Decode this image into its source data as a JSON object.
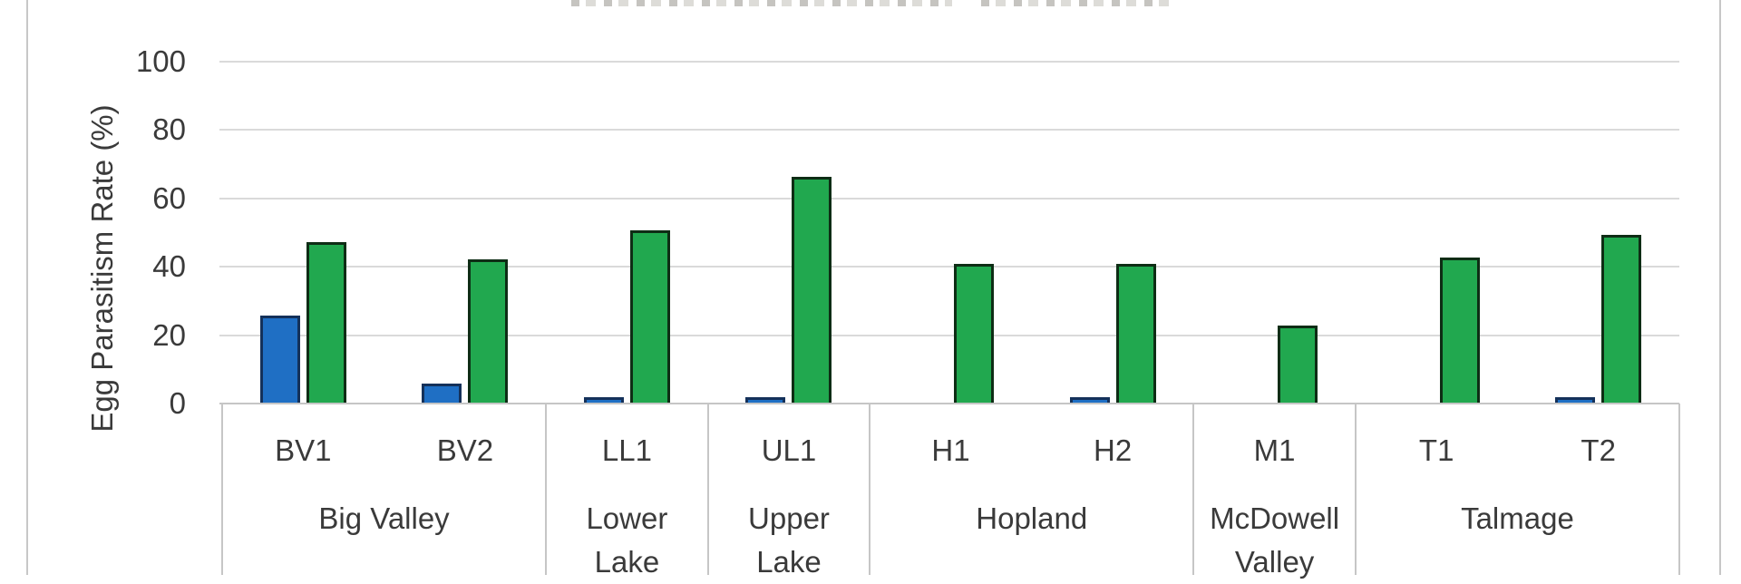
{
  "notes": {
    "top_edge_text": "illegible text fragment cut off at the very top edge of the screenshot"
  },
  "chart_data": {
    "type": "bar",
    "title": "",
    "xlabel": "",
    "ylabel": "Egg Parasitism Rate (%)",
    "ylim": [
      0,
      100
    ],
    "yticks": [
      0,
      20,
      40,
      60,
      80,
      100
    ],
    "ytick_labels": [
      "0",
      "20",
      "40",
      "60",
      "80",
      "100"
    ],
    "grid": true,
    "legend_position": "none-visible (cut off at top)",
    "categories": [
      "BV1",
      "BV2",
      "LL1",
      "UL1",
      "H1",
      "H2",
      "M1",
      "T1",
      "T2"
    ],
    "groups": [
      {
        "label": "Big Valley",
        "start": 0,
        "count": 2
      },
      {
        "label": "Lower\nLake",
        "start": 2,
        "count": 1
      },
      {
        "label": "Upper\nLake",
        "start": 3,
        "count": 1
      },
      {
        "label": "Hopland",
        "start": 4,
        "count": 2
      },
      {
        "label": "McDowell\nValley",
        "start": 6,
        "count": 1
      },
      {
        "label": "Talmage",
        "start": 7,
        "count": 2
      }
    ],
    "series": [
      {
        "name": "blue-series",
        "fill": "#1F6FC4",
        "border": "#14315A",
        "values": [
          25,
          5,
          1,
          1,
          null,
          1,
          null,
          null,
          1
        ]
      },
      {
        "name": "green-series",
        "fill": "#21A84F",
        "border": "#0E2D15",
        "values": [
          46.5,
          41.5,
          50,
          65.5,
          40,
          40,
          22,
          42,
          48.5
        ]
      }
    ]
  }
}
